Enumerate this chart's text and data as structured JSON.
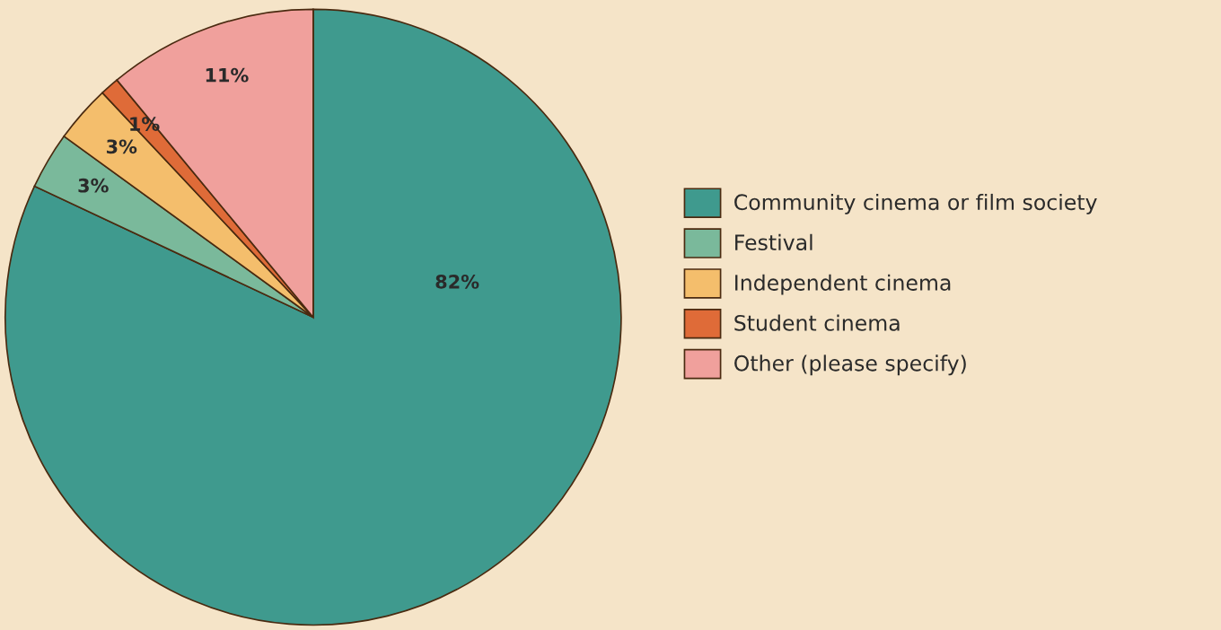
{
  "chart_data": {
    "type": "pie",
    "categories": [
      "Community cinema or film society",
      "Festival",
      "Independent cinema",
      "Student cinema",
      "Other (please specify)"
    ],
    "values": [
      82,
      3,
      3,
      1,
      11
    ],
    "colors": [
      "#3f9a8e",
      "#7ab99b",
      "#f4be6c",
      "#df6b38",
      "#f0a09c"
    ],
    "value_labels": [
      "82%",
      "3%",
      "3%",
      "1%",
      "11%"
    ],
    "legend": "right"
  }
}
